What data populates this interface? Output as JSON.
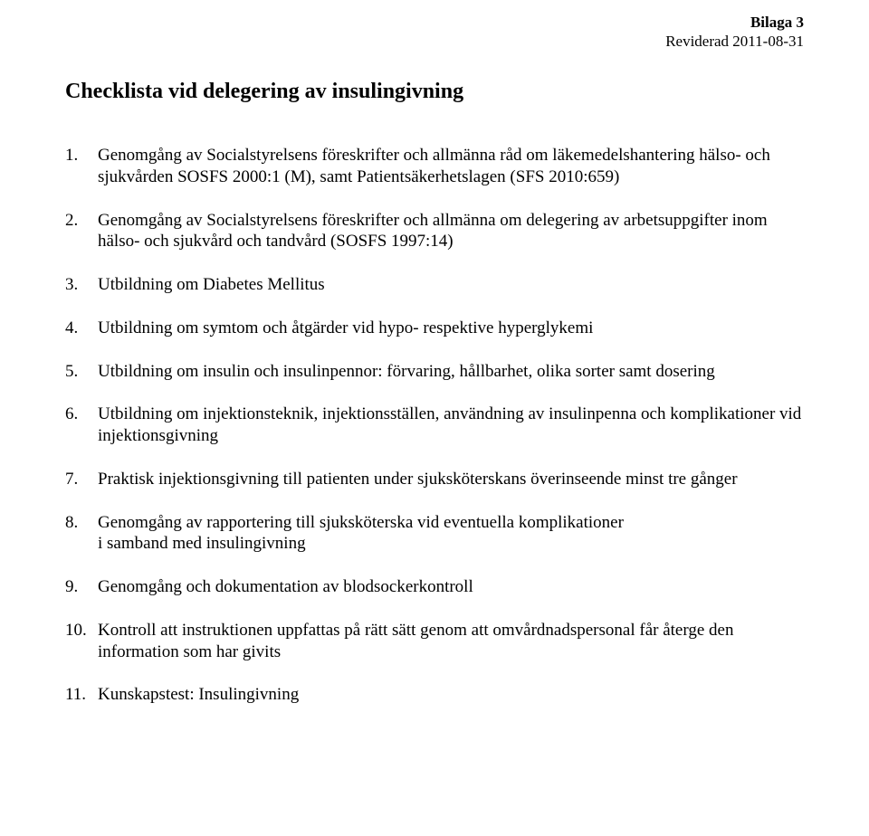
{
  "header": {
    "attachment": "Bilaga 3",
    "revised": "Reviderad 2011-08-31"
  },
  "title": "Checklista vid delegering av insulingivning",
  "items": [
    {
      "num": "1.",
      "text": "Genomgång av Socialstyrelsens föreskrifter och allmänna råd om läkemedelshantering hälso- och sjukvården SOSFS 2000:1 (M), samt Patientsäkerhetslagen (SFS 2010:659)"
    },
    {
      "num": "2.",
      "text": "Genomgång av Socialstyrelsens föreskrifter och allmänna om delegering av arbetsuppgifter inom hälso- och sjukvård och tandvård (SOSFS 1997:14)"
    },
    {
      "num": "3.",
      "text": "Utbildning om Diabetes Mellitus"
    },
    {
      "num": "4.",
      "text": "Utbildning om symtom och åtgärder vid hypo- respektive hyperglykemi"
    },
    {
      "num": "5.",
      "text": "Utbildning om insulin och insulinpennor: förvaring, hållbarhet, olika sorter samt dosering"
    },
    {
      "num": "6.",
      "text": "Utbildning om injektionsteknik, injektionsställen, användning av insulinpenna och komplikationer vid injektionsgivning"
    },
    {
      "num": "7.",
      "text": "Praktisk injektionsgivning till patienten under sjuksköterskans överinseende minst tre gånger"
    },
    {
      "num": "8.",
      "text": "Genomgång av rapportering till sjuksköterska vid eventuella komplikationer",
      "sub": " i samband med insulingivning"
    },
    {
      "num": "9.",
      "text": "Genomgång och dokumentation av blodsockerkontroll"
    },
    {
      "num": "10.",
      "text": "Kontroll att instruktionen uppfattas på rätt sätt genom att omvårdnadspersonal får återge den information som har givits"
    },
    {
      "num": "11.",
      "text": "Kunskapstest: Insulingivning"
    }
  ]
}
